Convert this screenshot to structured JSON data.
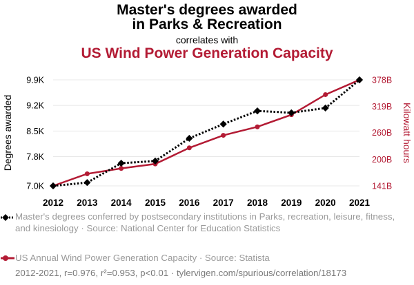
{
  "header": {
    "title_line1": "Master's degrees awarded",
    "title_line2": "in Parks & Recreation",
    "correlates": "correlates with",
    "title2": "US Wind Power Generation Capacity"
  },
  "colors": {
    "series1": "#000000",
    "series2": "#b31b34",
    "grid": "#e8e8e8"
  },
  "chart_data": {
    "type": "line",
    "x": [
      "2012",
      "2013",
      "2014",
      "2015",
      "2016",
      "2017",
      "2018",
      "2019",
      "2020",
      "2021"
    ],
    "series": [
      {
        "name": "Master's degrees awarded",
        "axis": "left",
        "style": "dotted",
        "marker": "diamond",
        "values": [
          7000,
          7090,
          7620,
          7680,
          8300,
          8690,
          9050,
          9000,
          9130,
          9900
        ]
      },
      {
        "name": "US Wind Power Generation Capacity",
        "axis": "right",
        "style": "solid",
        "marker": "circle",
        "values": [
          141,
          168,
          180,
          190,
          226,
          254,
          273,
          300,
          345,
          378
        ]
      }
    ],
    "y_left": {
      "label": "Degrees awarded",
      "range": [
        7000,
        9900
      ],
      "ticks": [
        7000,
        7800,
        8500,
        9200,
        9900
      ],
      "tick_labels": [
        "7.0K",
        "7.8K",
        "8.5K",
        "9.2K",
        "9.9K"
      ]
    },
    "y_right": {
      "label": "Kilowatt hours",
      "range": [
        141,
        378
      ],
      "ticks": [
        141,
        200,
        260,
        319,
        378
      ],
      "tick_labels": [
        "141B",
        "200B",
        "260B",
        "319B",
        "378B"
      ]
    },
    "grid": true
  },
  "legend": [
    {
      "text": "Master's degrees conferred by postsecondary institutions in Parks, recreation, leisure, fitness, and kinesiology · Source: National Center for Education Statistics"
    },
    {
      "text": "US Annual Wind Power Generation Capacity · Source: Statista"
    }
  ],
  "footer": "2012-2021, r=0.976, r²=0.953, p<0.01 · tylervigen.com/spurious/correlation/18173"
}
